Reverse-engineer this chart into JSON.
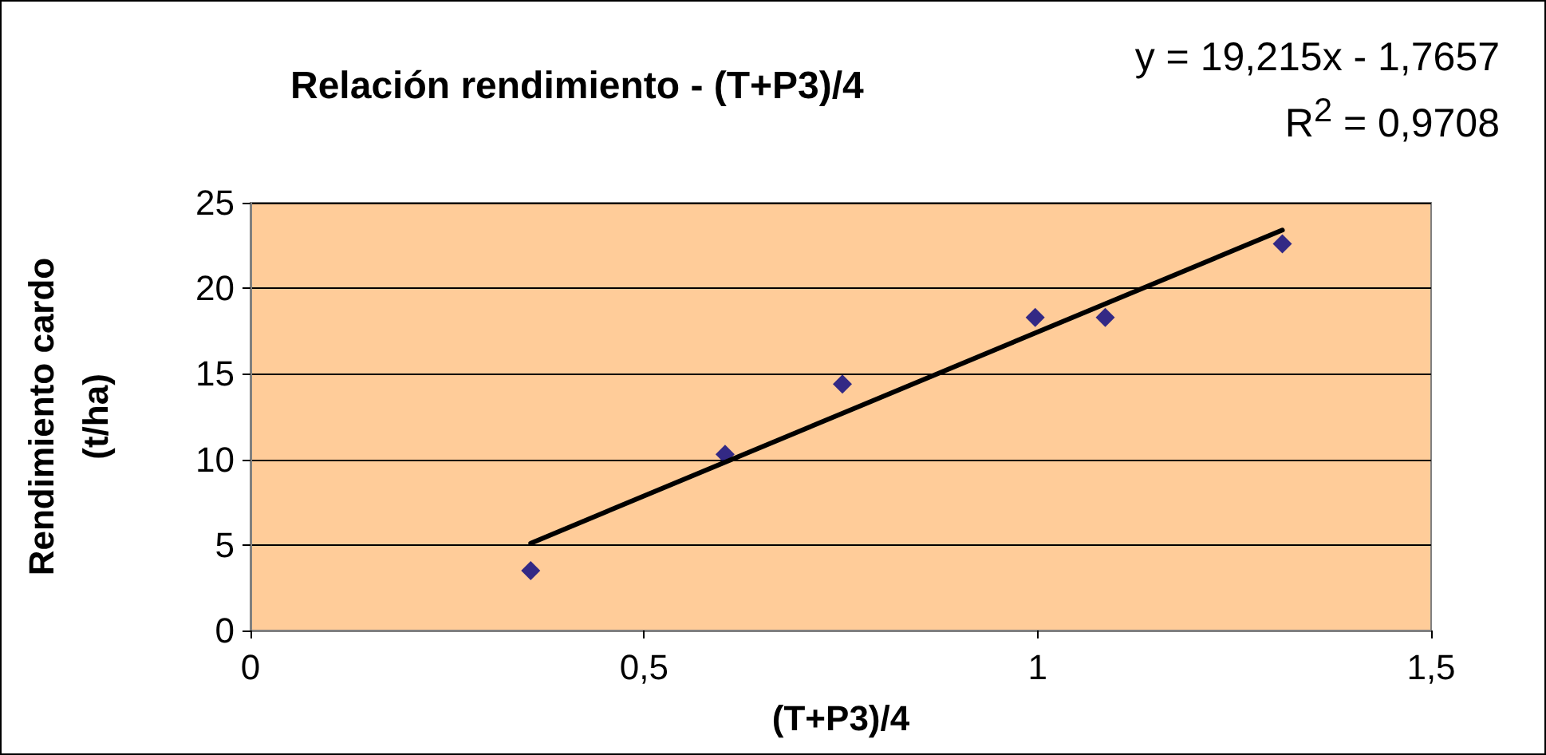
{
  "chart_data": {
    "type": "scatter",
    "title": "Relación rendimiento - (T+P3)/4",
    "xlabel": "(T+P3)/4",
    "ylabel": "Rendimiento cardo (t/ha)",
    "annotations": [
      "y = 19,215x - 1,7657",
      "R$^{2}$ = 0,9708"
    ],
    "xlim": [
      0,
      1.5
    ],
    "xticks": [
      0,
      {
        "value": 0.5,
        "label": "0,5"
      },
      1,
      {
        "value": 1.5,
        "label": "1,5"
      }
    ],
    "ylim": [
      0,
      25
    ],
    "yticks": [
      0,
      5,
      10,
      15,
      20,
      25
    ],
    "grid": "y",
    "marker": "diamond",
    "series": [
      {
        "color": "#000080",
        "x": [
          0.356,
          0.603,
          0.752,
          0.997,
          1.086,
          1.311
        ],
        "values": [
          3.5,
          10.3,
          14.4,
          18.3,
          18.3,
          22.6
        ]
      },
      {
        "type": "line",
        "color": "#000000",
        "marker": "none",
        "line_style": "solid",
        "x": [
          0.356,
          1.311
        ],
        "values": [
          5.1,
          23.4
        ]
      }
    ]
  }
}
